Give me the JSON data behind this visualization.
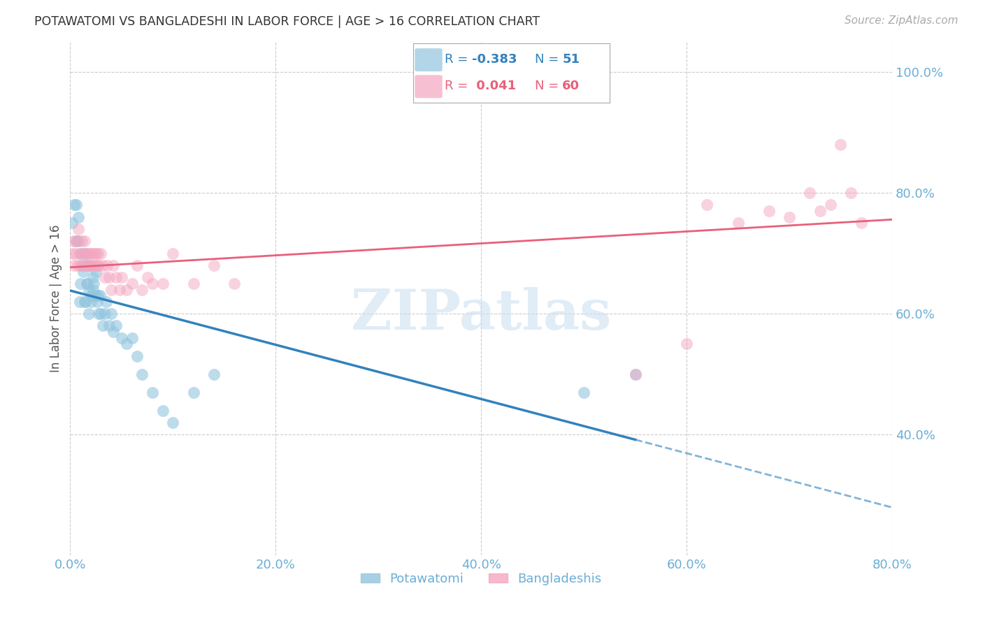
{
  "title": "POTAWATOMI VS BANGLADESHI IN LABOR FORCE | AGE > 16 CORRELATION CHART",
  "source_text": "Source: ZipAtlas.com",
  "ylabel": "In Labor Force | Age > 16",
  "watermark": "ZIPatlas",
  "legend": {
    "blue_R": "-0.383",
    "blue_N": "51",
    "pink_R": "0.041",
    "pink_N": "60"
  },
  "blue_color": "#92c5de",
  "pink_color": "#f4a6c0",
  "blue_line_color": "#3182bd",
  "pink_line_color": "#e8607a",
  "background_color": "#ffffff",
  "grid_color": "#cccccc",
  "axis_label_color": "#6baed6",
  "title_color": "#333333",
  "xlim": [
    0.0,
    0.8
  ],
  "ylim": [
    0.2,
    1.05
  ],
  "blue_scatter_x": [
    0.002,
    0.004,
    0.006,
    0.006,
    0.008,
    0.008,
    0.009,
    0.01,
    0.01,
    0.012,
    0.013,
    0.014,
    0.015,
    0.015,
    0.016,
    0.016,
    0.017,
    0.018,
    0.018,
    0.019,
    0.02,
    0.021,
    0.022,
    0.022,
    0.023,
    0.024,
    0.025,
    0.026,
    0.027,
    0.028,
    0.029,
    0.03,
    0.032,
    0.034,
    0.035,
    0.038,
    0.04,
    0.042,
    0.045,
    0.05,
    0.055,
    0.06,
    0.065,
    0.07,
    0.08,
    0.09,
    0.1,
    0.12,
    0.14,
    0.5,
    0.55
  ],
  "blue_scatter_y": [
    0.75,
    0.78,
    0.78,
    0.72,
    0.72,
    0.76,
    0.62,
    0.7,
    0.65,
    0.68,
    0.67,
    0.62,
    0.7,
    0.62,
    0.65,
    0.68,
    0.65,
    0.6,
    0.64,
    0.68,
    0.62,
    0.63,
    0.66,
    0.64,
    0.65,
    0.63,
    0.67,
    0.62,
    0.63,
    0.6,
    0.63,
    0.6,
    0.58,
    0.6,
    0.62,
    0.58,
    0.6,
    0.57,
    0.58,
    0.56,
    0.55,
    0.56,
    0.53,
    0.5,
    0.47,
    0.44,
    0.42,
    0.47,
    0.5,
    0.47,
    0.5
  ],
  "pink_scatter_x": [
    0.002,
    0.003,
    0.004,
    0.005,
    0.006,
    0.007,
    0.008,
    0.009,
    0.01,
    0.011,
    0.012,
    0.013,
    0.014,
    0.015,
    0.016,
    0.017,
    0.018,
    0.019,
    0.02,
    0.021,
    0.022,
    0.023,
    0.024,
    0.025,
    0.026,
    0.027,
    0.028,
    0.03,
    0.032,
    0.034,
    0.036,
    0.038,
    0.04,
    0.042,
    0.045,
    0.048,
    0.05,
    0.055,
    0.06,
    0.065,
    0.07,
    0.075,
    0.08,
    0.09,
    0.1,
    0.12,
    0.14,
    0.16,
    0.55,
    0.6,
    0.62,
    0.65,
    0.68,
    0.7,
    0.72,
    0.73,
    0.74,
    0.75,
    0.76,
    0.77
  ],
  "pink_scatter_y": [
    0.7,
    0.72,
    0.68,
    0.7,
    0.72,
    0.68,
    0.74,
    0.7,
    0.68,
    0.72,
    0.7,
    0.68,
    0.72,
    0.7,
    0.68,
    0.7,
    0.68,
    0.7,
    0.68,
    0.7,
    0.68,
    0.7,
    0.68,
    0.7,
    0.68,
    0.7,
    0.68,
    0.7,
    0.68,
    0.66,
    0.68,
    0.66,
    0.64,
    0.68,
    0.66,
    0.64,
    0.66,
    0.64,
    0.65,
    0.68,
    0.64,
    0.66,
    0.65,
    0.65,
    0.7,
    0.65,
    0.68,
    0.65,
    0.5,
    0.55,
    0.78,
    0.75,
    0.77,
    0.76,
    0.8,
    0.77,
    0.78,
    0.88,
    0.8,
    0.75
  ],
  "yticks": [
    0.4,
    0.6,
    0.8,
    1.0
  ],
  "ytick_labels": [
    "40.0%",
    "60.0%",
    "80.0%",
    "100.0%"
  ],
  "xticks": [
    0.0,
    0.2,
    0.4,
    0.6,
    0.8
  ],
  "xtick_labels": [
    "0.0%",
    "20.0%",
    "40.0%",
    "60.0%",
    "80.0%"
  ]
}
